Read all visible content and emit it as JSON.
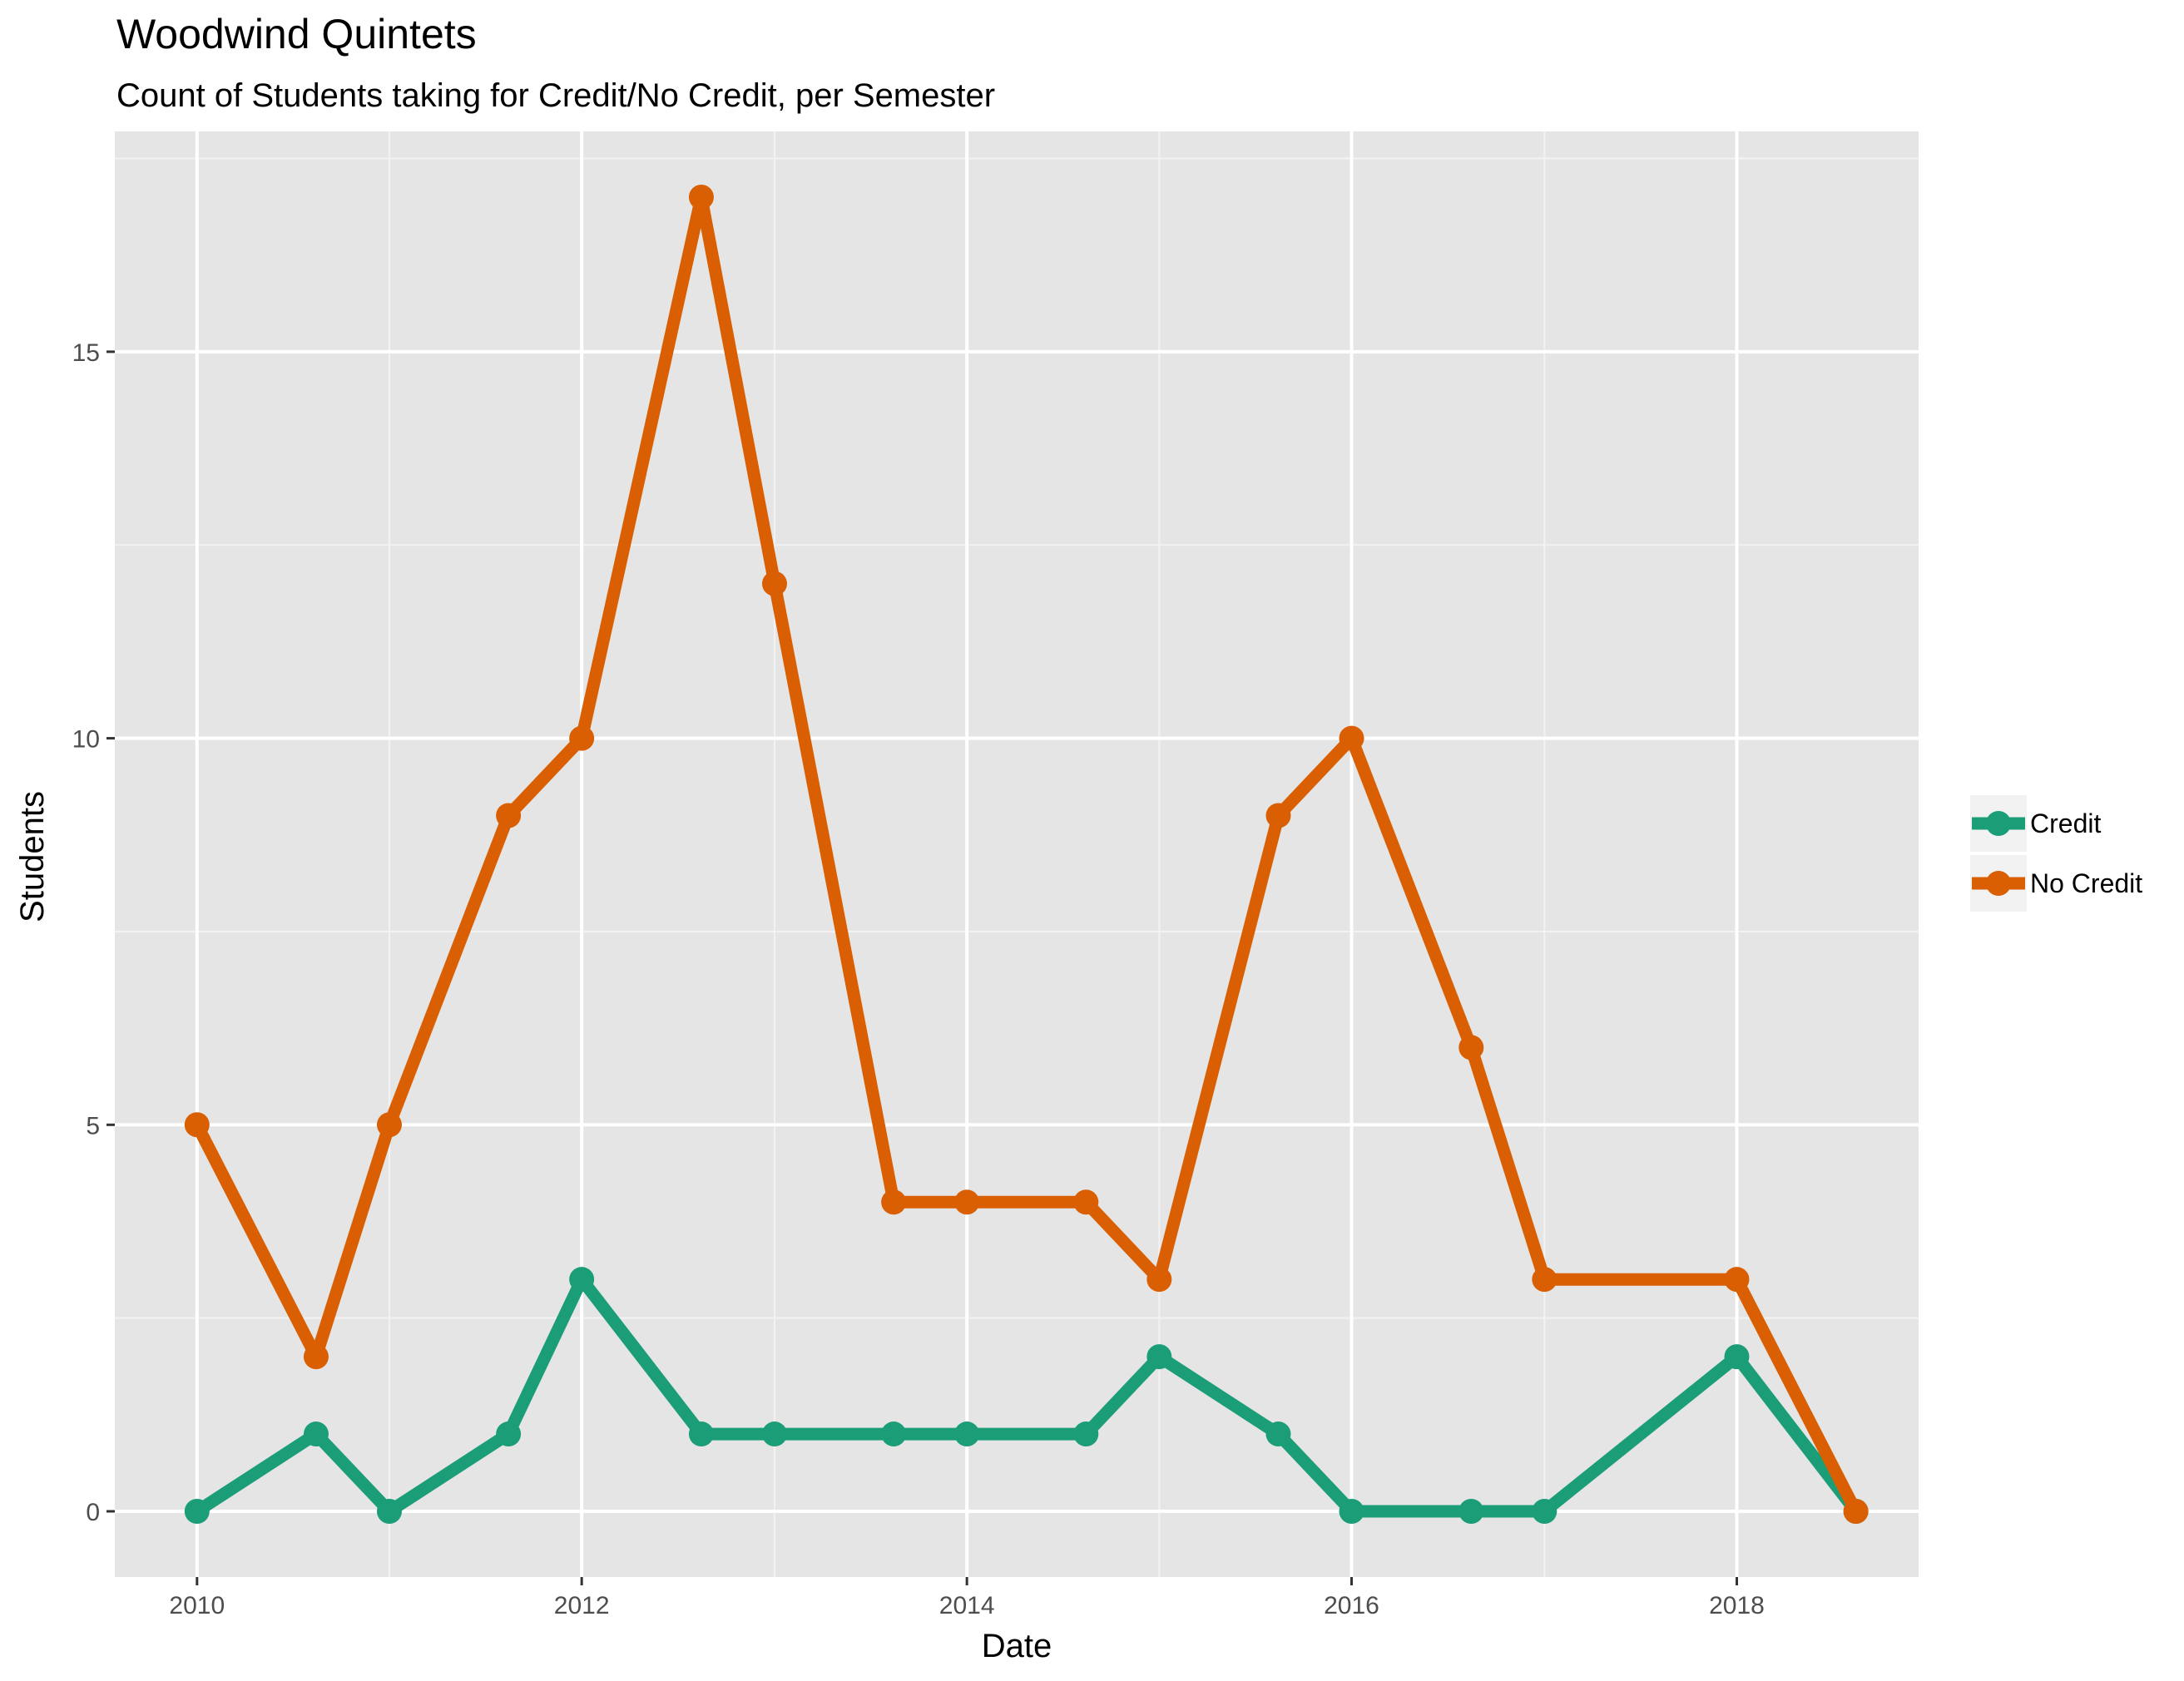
{
  "chart_data": {
    "type": "line",
    "title": "Woodwind Quintets",
    "subtitle": "Count of Students taking for Credit/No Credit, per Semester",
    "xlabel": "Date",
    "ylabel": "Students",
    "x_tick_labels": [
      "2010",
      "2012",
      "2014",
      "2016",
      "2018"
    ],
    "y_tick_labels": [
      "0",
      "5",
      "10",
      "15"
    ],
    "ylim": [
      -0.85,
      17.85
    ],
    "xlim": [
      "2009-07-29",
      "2018-12-12"
    ],
    "grid": true,
    "legend_position": "right",
    "series": [
      {
        "name": "Credit",
        "color": "#1b9e77",
        "points": [
          {
            "x": "2010-01-01",
            "y": 0
          },
          {
            "x": "2010-08-15",
            "y": 1
          },
          {
            "x": "2011-01-01",
            "y": 0
          },
          {
            "x": "2011-08-15",
            "y": 1
          },
          {
            "x": "2012-01-01",
            "y": 3
          },
          {
            "x": "2012-08-15",
            "y": 1
          },
          {
            "x": "2013-01-01",
            "y": 1
          },
          {
            "x": "2013-08-15",
            "y": 1
          },
          {
            "x": "2014-01-01",
            "y": 1
          },
          {
            "x": "2014-08-15",
            "y": 1
          },
          {
            "x": "2015-01-01",
            "y": 2
          },
          {
            "x": "2015-08-15",
            "y": 1
          },
          {
            "x": "2016-01-01",
            "y": 0
          },
          {
            "x": "2016-08-15",
            "y": 0
          },
          {
            "x": "2017-01-01",
            "y": 0
          },
          {
            "x": "2018-01-01",
            "y": 2
          },
          {
            "x": "2018-08-15",
            "y": 0
          }
        ]
      },
      {
        "name": "No Credit",
        "color": "#d95f02",
        "points": [
          {
            "x": "2010-01-01",
            "y": 5
          },
          {
            "x": "2010-08-15",
            "y": 2
          },
          {
            "x": "2011-01-01",
            "y": 5
          },
          {
            "x": "2011-08-15",
            "y": 9
          },
          {
            "x": "2012-01-01",
            "y": 10
          },
          {
            "x": "2012-08-15",
            "y": 17
          },
          {
            "x": "2013-01-01",
            "y": 12
          },
          {
            "x": "2013-08-15",
            "y": 4
          },
          {
            "x": "2014-01-01",
            "y": 4
          },
          {
            "x": "2014-08-15",
            "y": 4
          },
          {
            "x": "2015-01-01",
            "y": 3
          },
          {
            "x": "2015-08-15",
            "y": 9
          },
          {
            "x": "2016-01-01",
            "y": 10
          },
          {
            "x": "2016-08-15",
            "y": 6
          },
          {
            "x": "2017-01-01",
            "y": 3
          },
          {
            "x": "2018-01-01",
            "y": 3
          },
          {
            "x": "2018-08-15",
            "y": 0
          }
        ]
      }
    ]
  }
}
